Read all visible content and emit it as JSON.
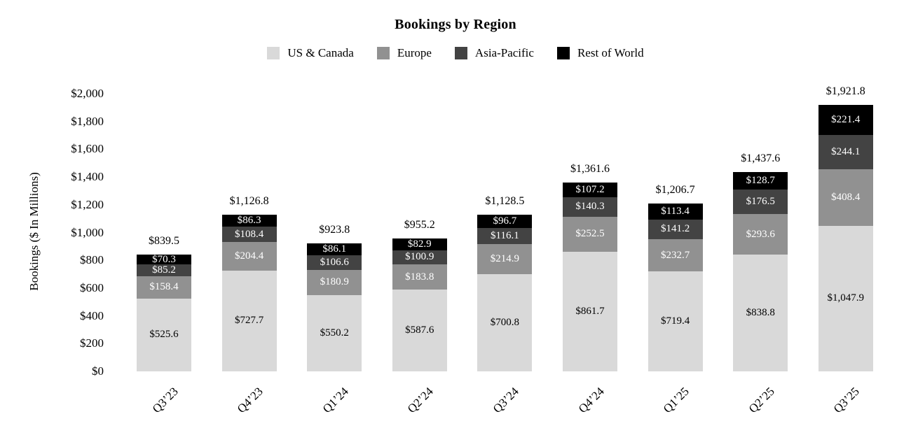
{
  "chart_data": {
    "type": "bar",
    "stacked": true,
    "title": "Bookings by Region",
    "ylabel": "Bookings ($ In Millions)",
    "xlabel": "",
    "ylim": [
      0,
      2000
    ],
    "y_tick_step": 200,
    "y_tick_labels": [
      "$0",
      "$200",
      "$400",
      "$600",
      "$800",
      "$1,000",
      "$1,200",
      "$1,400",
      "$1,600",
      "$1,800",
      "$2,000"
    ],
    "grid": false,
    "legend_position": "top",
    "categories": [
      "Q3’23",
      "Q4’23",
      "Q1’24",
      "Q2’24",
      "Q3’24",
      "Q4’24",
      "Q1’25",
      "Q2’25",
      "Q3’25"
    ],
    "series": [
      {
        "name": "US & Canada",
        "color": "#d9d9d9",
        "label_color": "#000000",
        "values": [
          525.6,
          727.7,
          550.2,
          587.6,
          700.8,
          861.7,
          719.4,
          838.8,
          1047.9
        ],
        "labels": [
          "$525.6",
          "$727.7",
          "$550.2",
          "$587.6",
          "$700.8",
          "$861.7",
          "$719.4",
          "$838.8",
          "$1,047.9"
        ]
      },
      {
        "name": "Europe",
        "color": "#919191",
        "label_color": "#ffffff",
        "values": [
          158.4,
          204.4,
          180.9,
          183.8,
          214.9,
          252.5,
          232.7,
          293.6,
          408.4
        ],
        "labels": [
          "$158.4",
          "$204.4",
          "$180.9",
          "$183.8",
          "$214.9",
          "$252.5",
          "$232.7",
          "$293.6",
          "$408.4"
        ]
      },
      {
        "name": "Asia-Pacific",
        "color": "#434343",
        "label_color": "#ffffff",
        "values": [
          85.2,
          108.4,
          106.6,
          100.9,
          116.1,
          140.3,
          141.2,
          176.5,
          244.1
        ],
        "labels": [
          "$85.2",
          "$108.4",
          "$106.6",
          "$100.9",
          "$116.1",
          "$140.3",
          "$141.2",
          "$176.5",
          "$244.1"
        ]
      },
      {
        "name": "Rest of World",
        "color": "#000000",
        "label_color": "#ffffff",
        "values": [
          70.3,
          86.3,
          86.1,
          82.9,
          96.7,
          107.2,
          113.4,
          128.7,
          221.4
        ],
        "labels": [
          "$70.3",
          "$86.3",
          "$86.1",
          "$82.9",
          "$96.7",
          "$107.2",
          "$113.4",
          "$128.7",
          "$221.4"
        ]
      }
    ],
    "totals_labels": [
      "$839.5",
      "$1,126.8",
      "$923.8",
      "$955.2",
      "$1,128.5",
      "$1,361.6",
      "$1,206.7",
      "$1,437.6",
      "$1,921.8"
    ]
  }
}
